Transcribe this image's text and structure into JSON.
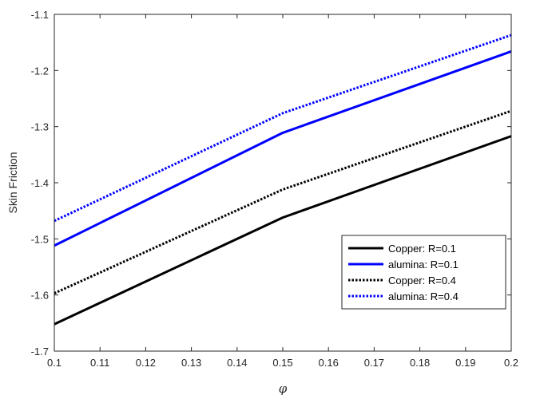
{
  "chart_data": {
    "type": "line",
    "title": "",
    "xlabel": "φ",
    "ylabel": "Skin Friction",
    "xlim": [
      0.1,
      0.2
    ],
    "ylim": [
      -1.7,
      -1.1
    ],
    "xticks": [
      0.1,
      0.11,
      0.12,
      0.13,
      0.14,
      0.15,
      0.16,
      0.17,
      0.18,
      0.19,
      0.2
    ],
    "xtick_labels": [
      "0.1",
      "0.11",
      "0.12",
      "0.13",
      "0.14",
      "0.15",
      "0.16",
      "0.17",
      "0.18",
      "0.19",
      "0.2"
    ],
    "yticks": [
      -1.7,
      -1.6,
      -1.5,
      -1.4,
      -1.3,
      -1.2,
      -1.1
    ],
    "ytick_labels": [
      "-1.7",
      "-1.6",
      "-1.5",
      "-1.4",
      "-1.3",
      "-1.2",
      "-1.1"
    ],
    "grid": false,
    "legend_position": "bottom-right",
    "series": [
      {
        "name": "Copper: R=0.1",
        "color": "#000000",
        "style": "solid",
        "x": [
          0.1,
          0.15,
          0.2
        ],
        "y": [
          -1.652,
          -1.462,
          -1.317
        ]
      },
      {
        "name": "alumina: R=0.1",
        "color": "#0000ff",
        "style": "solid",
        "x": [
          0.1,
          0.15,
          0.2
        ],
        "y": [
          -1.512,
          -1.311,
          -1.166
        ]
      },
      {
        "name": "Copper: R=0.4",
        "color": "#000000",
        "style": "dotted",
        "x": [
          0.1,
          0.15,
          0.2
        ],
        "y": [
          -1.597,
          -1.412,
          -1.272
        ]
      },
      {
        "name": "alumina: R=0.4",
        "color": "#0000ff",
        "style": "dotted",
        "x": [
          0.1,
          0.15,
          0.2
        ],
        "y": [
          -1.468,
          -1.276,
          -1.137
        ]
      }
    ]
  }
}
